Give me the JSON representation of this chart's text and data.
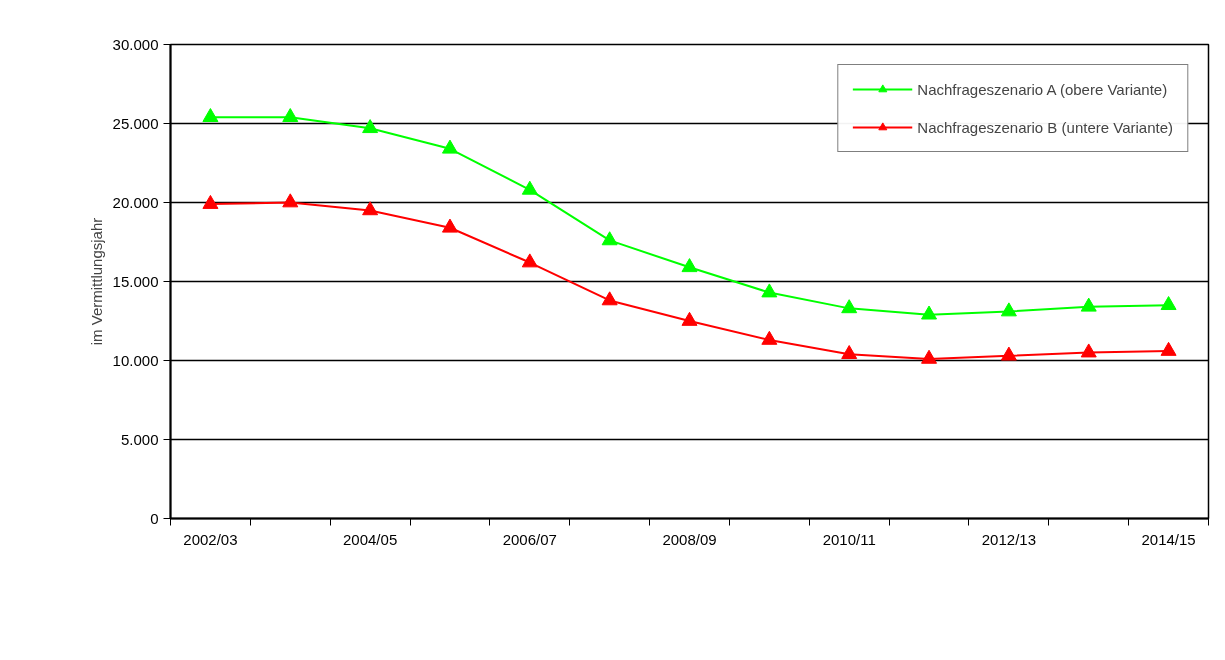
{
  "chart_data": {
    "type": "line",
    "ylabel": "im Vermittlungsjahr",
    "categories": [
      "2002/03",
      null,
      "2004/05",
      null,
      "2006/07",
      null,
      "2008/09",
      null,
      "2010/11",
      null,
      "2012/13",
      null,
      "2014/15"
    ],
    "series": [
      {
        "name": "Nachfrageszenario A (obere Variante)",
        "color": "#00ff00",
        "values": [
          25400,
          25400,
          24700,
          23400,
          20800,
          17600,
          15900,
          14300,
          13300,
          12900,
          13100,
          13400,
          13500
        ]
      },
      {
        "name": "Nachfrageszenario B (untere Variante)",
        "color": "#ff0000",
        "values": [
          19900,
          20000,
          19500,
          18400,
          16200,
          13800,
          12500,
          11300,
          10400,
          10100,
          10300,
          10500,
          10600
        ]
      }
    ],
    "ylim": [
      0,
      30000
    ],
    "yticks": [
      {
        "value": 0,
        "label": "0"
      },
      {
        "value": 5000,
        "label": "5.000"
      },
      {
        "value": 10000,
        "label": "10.000"
      },
      {
        "value": 15000,
        "label": "15.000"
      },
      {
        "value": 20000,
        "label": "20.000"
      },
      {
        "value": 25000,
        "label": "25.000"
      },
      {
        "value": 30000,
        "label": "30.000"
      }
    ],
    "grid": "y",
    "legend": "top right",
    "marker": "triangle",
    "line_style": "solid"
  }
}
